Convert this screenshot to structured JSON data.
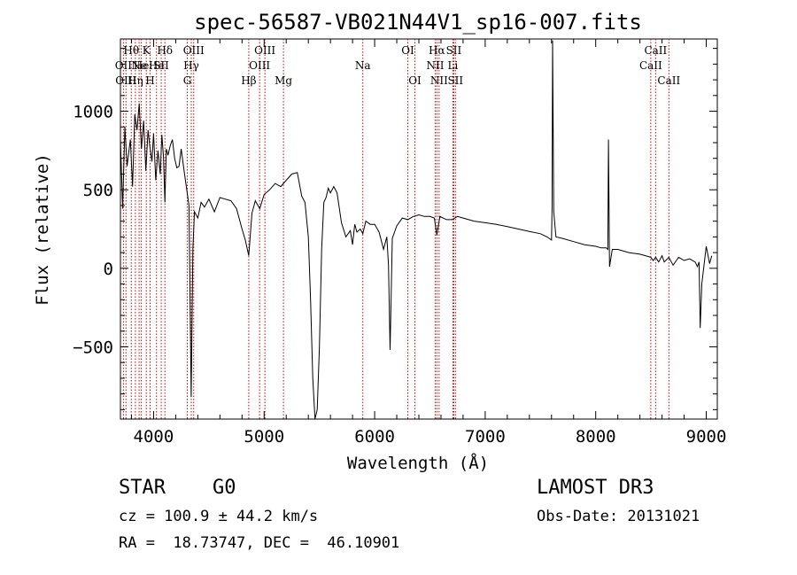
{
  "chart_data": {
    "type": "line",
    "title": "spec-56587-VB021N44V1_sp16-007.fits",
    "xlabel": "Wavelength (Å)",
    "ylabel": "Flux (relative)",
    "xlim": [
      3700,
      9100
    ],
    "ylim": [
      -960,
      1460
    ],
    "x_ticks": [
      4000,
      5000,
      6000,
      7000,
      8000,
      9000
    ],
    "y_ticks": [
      -500,
      0,
      500,
      1000
    ],
    "grid": false,
    "line_color": "#000000",
    "marker_color": "#cc0000",
    "spectrum": {
      "x": [
        3700,
        3720,
        3740,
        3760,
        3790,
        3810,
        3830,
        3850,
        3870,
        3890,
        3910,
        3930,
        3950,
        3965,
        3985,
        4000,
        4020,
        4040,
        4060,
        4075,
        4090,
        4102,
        4115,
        4130,
        4150,
        4170,
        4190,
        4210,
        4230,
        4250,
        4280,
        4300,
        4320,
        4340,
        4355,
        4370,
        4400,
        4430,
        4460,
        4500,
        4550,
        4600,
        4650,
        4700,
        4750,
        4800,
        4830,
        4861,
        4890,
        4920,
        4960,
        5000,
        5050,
        5100,
        5150,
        5200,
        5250,
        5300,
        5340,
        5370,
        5400,
        5420,
        5440,
        5460,
        5480,
        5500,
        5520,
        5540,
        5560,
        5580,
        5600,
        5630,
        5660,
        5700,
        5740,
        5780,
        5800,
        5820,
        5840,
        5870,
        5893,
        5920,
        5960,
        6000,
        6040,
        6080,
        6110,
        6125,
        6140,
        6160,
        6200,
        6250,
        6300,
        6350,
        6400,
        6450,
        6500,
        6540,
        6563,
        6590,
        6650,
        6700,
        6750,
        6800,
        6900,
        7000,
        7100,
        7200,
        7300,
        7400,
        7500,
        7560,
        7600,
        7605,
        7610,
        7620,
        7640,
        7700,
        7800,
        7900,
        8000,
        8050,
        8095,
        8110,
        8115,
        8125,
        8150,
        8200,
        8300,
        8400,
        8450,
        8498,
        8520,
        8542,
        8570,
        8600,
        8620,
        8662,
        8700,
        8750,
        8800,
        8850,
        8900,
        8920,
        8935,
        8945,
        8960,
        8980,
        9000,
        9030,
        9050
      ],
      "y": [
        820,
        380,
        900,
        650,
        820,
        520,
        980,
        880,
        1050,
        760,
        940,
        620,
        880,
        780,
        680,
        860,
        560,
        750,
        600,
        850,
        700,
        420,
        760,
        720,
        780,
        820,
        700,
        640,
        650,
        760,
        600,
        500,
        400,
        -820,
        120,
        360,
        320,
        420,
        390,
        440,
        360,
        450,
        440,
        430,
        380,
        250,
        180,
        80,
        350,
        430,
        380,
        470,
        500,
        540,
        520,
        560,
        600,
        610,
        460,
        420,
        200,
        -200,
        -700,
        -960,
        -900,
        -500,
        120,
        420,
        450,
        510,
        480,
        520,
        480,
        290,
        200,
        240,
        150,
        280,
        230,
        250,
        220,
        300,
        280,
        280,
        230,
        120,
        200,
        20,
        -520,
        190,
        270,
        320,
        310,
        330,
        340,
        330,
        330,
        320,
        210,
        330,
        310,
        310,
        330,
        320,
        300,
        290,
        280,
        265,
        250,
        235,
        220,
        200,
        180,
        380,
        1450,
        360,
        200,
        190,
        170,
        150,
        140,
        130,
        130,
        120,
        820,
        10,
        120,
        120,
        100,
        90,
        80,
        70,
        50,
        70,
        40,
        80,
        40,
        70,
        20,
        70,
        50,
        60,
        40,
        10,
        40,
        -380,
        -100,
        20,
        140,
        30,
        80
      ]
    },
    "line_markers": [
      {
        "x": 3727,
        "label": "OII",
        "row": 2
      },
      {
        "x": 3750,
        "label": "OIII",
        "row": 3
      },
      {
        "x": 3798,
        "label": "Hθ",
        "row": 1
      },
      {
        "x": 3835,
        "label": "Hη",
        "row": 3
      },
      {
        "x": 3869,
        "label": "Ne",
        "row": 2
      },
      {
        "x": 3889,
        "label": "He",
        "row": 2
      },
      {
        "x": 3934,
        "label": "K",
        "row": 1
      },
      {
        "x": 3968,
        "label": "H",
        "row": 3
      },
      {
        "x": 4026,
        "label": "He",
        "row": 2
      },
      {
        "x": 4069,
        "label": "SII",
        "row": 2
      },
      {
        "x": 4102,
        "label": "Hδ",
        "row": 1
      },
      {
        "x": 4305,
        "label": "G",
        "row": 3
      },
      {
        "x": 4341,
        "label": "Hγ",
        "row": 2
      },
      {
        "x": 4363,
        "label": "OIII",
        "row": 1
      },
      {
        "x": 4861,
        "label": "Hβ",
        "row": 3
      },
      {
        "x": 4959,
        "label": "OIII",
        "row": 2
      },
      {
        "x": 5007,
        "label": "OIII",
        "row": 1
      },
      {
        "x": 5175,
        "label": "Mg",
        "row": 3
      },
      {
        "x": 5893,
        "label": "Na",
        "row": 2
      },
      {
        "x": 6300,
        "label": "OI",
        "row": 1
      },
      {
        "x": 6364,
        "label": "OI",
        "row": 3
      },
      {
        "x": 6548,
        "label": "NII",
        "row": 2
      },
      {
        "x": 6563,
        "label": "Hα",
        "row": 1
      },
      {
        "x": 6583,
        "label": "NII",
        "row": 3
      },
      {
        "x": 6708,
        "label": "Li",
        "row": 2
      },
      {
        "x": 6716,
        "label": "SII",
        "row": 1
      },
      {
        "x": 6731,
        "label": "SII",
        "row": 3
      },
      {
        "x": 8498,
        "label": "CaII",
        "row": 2
      },
      {
        "x": 8542,
        "label": "CaII",
        "row": 1
      },
      {
        "x": 8662,
        "label": "CaII",
        "row": 3
      }
    ]
  },
  "info": {
    "class": "STAR",
    "subclass": "G0",
    "survey": "LAMOST DR3",
    "redshift": "cz = 100.9 ± 44.2 km/s",
    "obs_date": "Obs-Date: 20131021",
    "coords": "RA =  18.73747, DEC =  46.10901"
  }
}
